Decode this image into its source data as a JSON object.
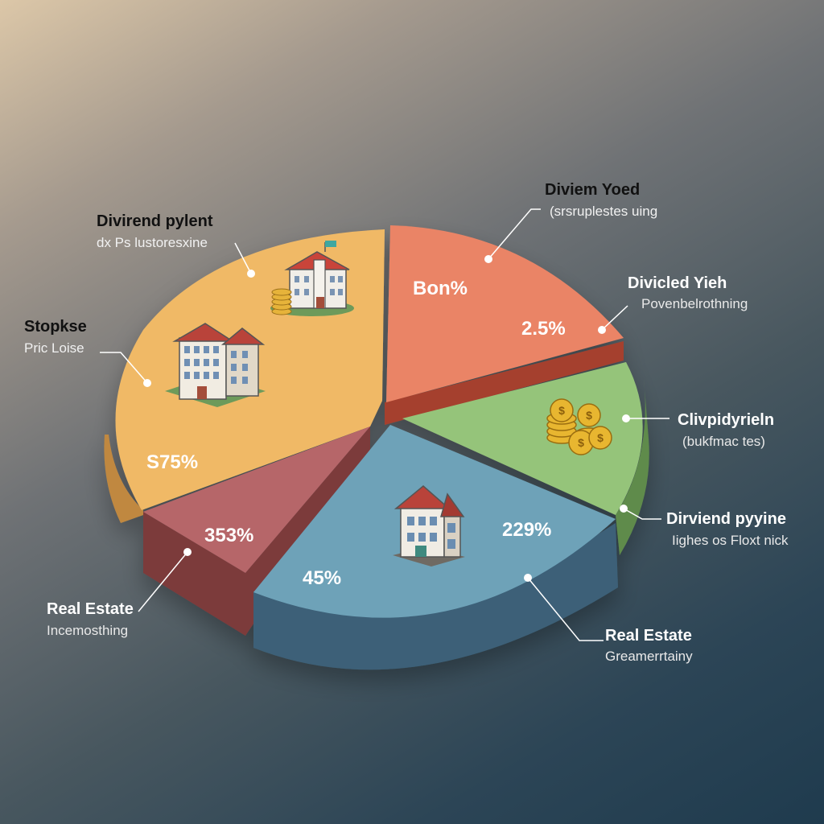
{
  "chart_data": {
    "type": "pie",
    "slices": [
      {
        "id": "yellow",
        "color": "#f0b966",
        "side": "#c08840",
        "percent_label": "S75%",
        "title": "Divirend pylent",
        "subtitle": "dx Ps lustoresxine",
        "icon": "building-coins-icon"
      },
      {
        "id": "yellow-left",
        "color": "#f0b966",
        "side": "#c08840",
        "percent_label": "",
        "title": "Stopkse",
        "subtitle": "Pric Loise",
        "icon": "apartment-building-icon"
      },
      {
        "id": "red",
        "color": "#ea8466",
        "side": "#a5412e",
        "percent_label_a": "Bon%",
        "percent_label_b": "2.5%",
        "title": "Diviem Yoed",
        "subtitle": "(srsruplestes uing",
        "title2": "Divicled Yieh",
        "subtitle2": "Povenbelrothning",
        "icon": ""
      },
      {
        "id": "green",
        "color": "#95c47a",
        "side": "#5e8b4b",
        "percent_label": "",
        "title": "Clivpidyrieln",
        "subtitle": "(bukfmac tes)",
        "title2": "Dirviend pyyine",
        "subtitle2": "Iighes os Floxt nick",
        "icon": "gold-coins-icon"
      },
      {
        "id": "blue",
        "color": "#6ea2b8",
        "side": "#3c6178",
        "percent_label_a": "229%",
        "percent_label_b": "45%",
        "title": "Real Estate",
        "subtitle": "Greamerrtainy",
        "icon": "house-icon"
      },
      {
        "id": "maroon",
        "color": "#b66669",
        "side": "#7c3a3b",
        "percent_label": "353%",
        "title": "Real Estate",
        "subtitle": "Incemosthing",
        "icon": ""
      }
    ],
    "title": "",
    "legend": "none"
  }
}
